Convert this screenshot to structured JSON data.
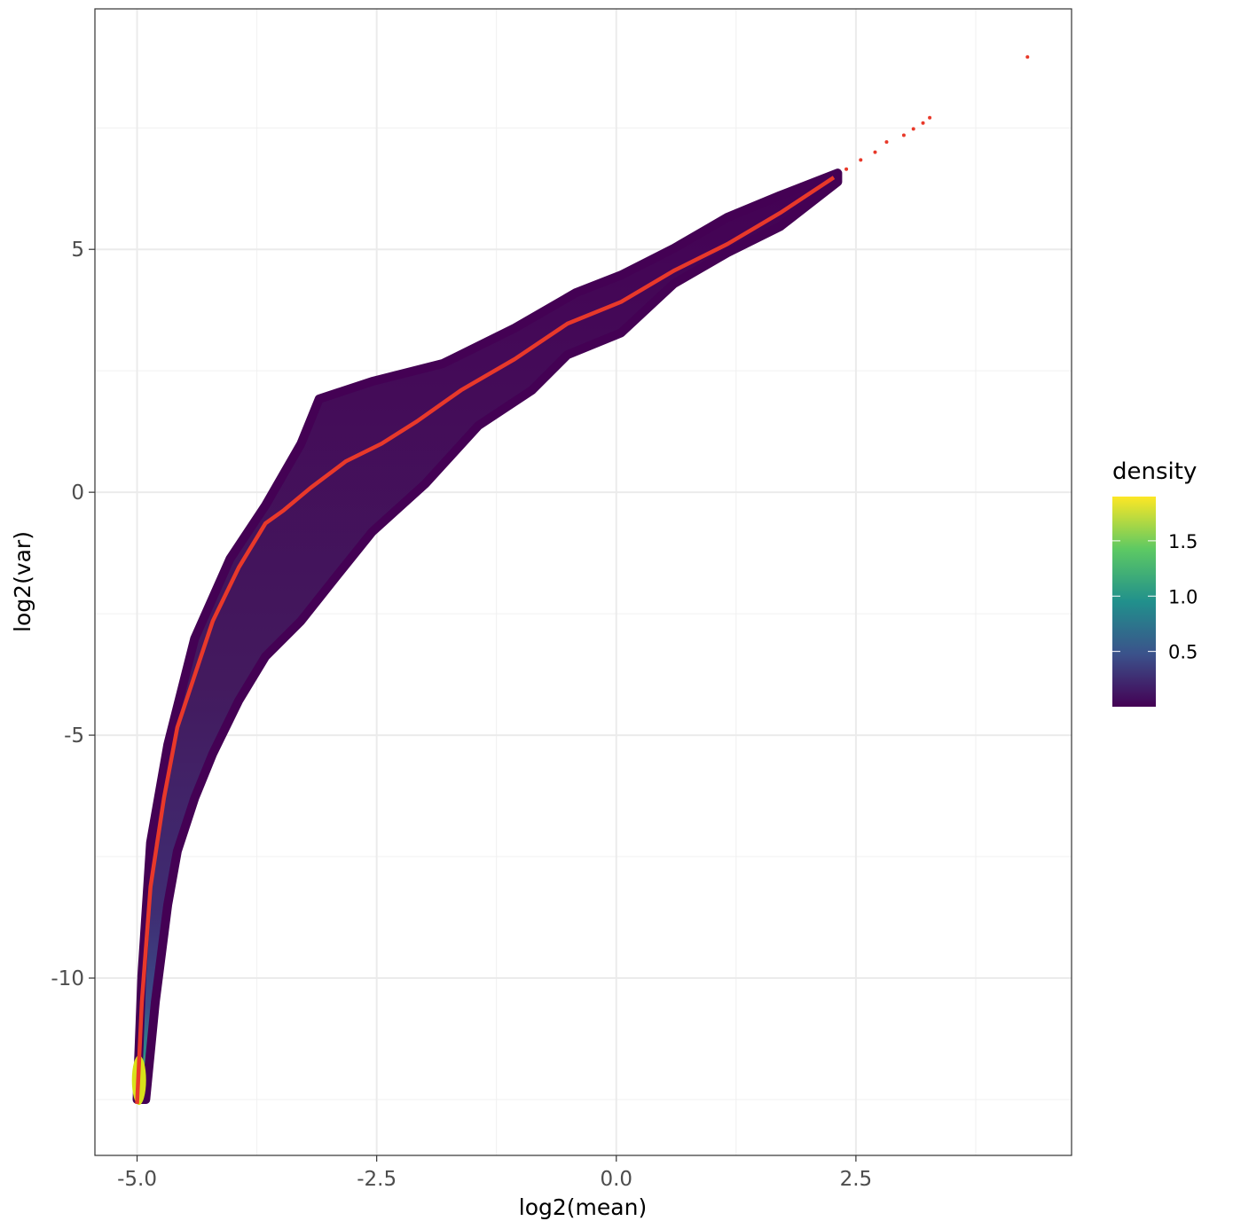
{
  "chart_data": {
    "type": "scatter",
    "title": "",
    "xlabel": "log2(mean)",
    "ylabel": "log2(var)",
    "xlim": [
      -5.44,
      4.75
    ],
    "ylim": [
      -13.65,
      9.95
    ],
    "x_ticks": [
      -5.0,
      -2.5,
      0.0,
      2.5
    ],
    "x_tick_labels": [
      "-5.0",
      "-2.5",
      "0.0",
      "2.5"
    ],
    "y_ticks": [
      5,
      0,
      -5,
      -10
    ],
    "y_tick_labels": [
      "5",
      "0",
      "-5",
      "-10"
    ],
    "grid": true,
    "point_cloud_upper_envelope": [
      [
        -5.0,
        -12.5
      ],
      [
        -4.95,
        -9.95
      ],
      [
        -4.86,
        -7.21
      ],
      [
        -4.68,
        -5.2
      ],
      [
        -4.4,
        -3.01
      ],
      [
        -4.03,
        -1.37
      ],
      [
        -3.66,
        -0.27
      ],
      [
        -3.29,
        1.0
      ],
      [
        -3.1,
        1.92
      ],
      [
        -2.55,
        2.28
      ],
      [
        -1.81,
        2.65
      ],
      [
        -1.06,
        3.38
      ],
      [
        -0.42,
        4.11
      ],
      [
        0.05,
        4.47
      ],
      [
        0.6,
        5.02
      ],
      [
        1.16,
        5.66
      ],
      [
        1.71,
        6.11
      ],
      [
        2.31,
        6.57
      ]
    ],
    "point_cloud_lower_envelope": [
      [
        2.31,
        6.39
      ],
      [
        1.71,
        5.47
      ],
      [
        1.16,
        4.93
      ],
      [
        0.6,
        4.29
      ],
      [
        0.05,
        3.28
      ],
      [
        -0.51,
        2.83
      ],
      [
        -0.88,
        2.1
      ],
      [
        -1.44,
        1.37
      ],
      [
        -1.99,
        0.18
      ],
      [
        -2.55,
        -0.82
      ],
      [
        -2.92,
        -1.73
      ],
      [
        -3.29,
        -2.65
      ],
      [
        -3.66,
        -3.38
      ],
      [
        -3.94,
        -4.29
      ],
      [
        -4.21,
        -5.38
      ],
      [
        -4.4,
        -6.3
      ],
      [
        -4.58,
        -7.39
      ],
      [
        -4.68,
        -8.49
      ],
      [
        -4.81,
        -10.49
      ],
      [
        -4.91,
        -12.5
      ]
    ],
    "trend_line": {
      "color": "#e8392a",
      "points": [
        [
          -5.0,
          -12.59
        ],
        [
          -4.95,
          -10.49
        ],
        [
          -4.86,
          -8.12
        ],
        [
          -4.72,
          -6.3
        ],
        [
          -4.58,
          -4.84
        ],
        [
          -4.21,
          -2.65
        ],
        [
          -3.94,
          -1.55
        ],
        [
          -3.66,
          -0.64
        ],
        [
          -3.47,
          -0.37
        ],
        [
          -3.19,
          0.09
        ],
        [
          -2.82,
          0.64
        ],
        [
          -2.45,
          1.0
        ],
        [
          -2.08,
          1.46
        ],
        [
          -1.62,
          2.1
        ],
        [
          -1.06,
          2.74
        ],
        [
          -0.51,
          3.47
        ],
        [
          0.05,
          3.92
        ],
        [
          0.6,
          4.56
        ],
        [
          1.16,
          5.11
        ],
        [
          1.71,
          5.75
        ],
        [
          2.27,
          6.48
        ]
      ]
    },
    "trend_points_extra": [
      [
        2.4,
        6.65
      ],
      [
        2.55,
        6.84
      ],
      [
        2.7,
        7.0
      ],
      [
        2.82,
        7.21
      ],
      [
        3.0,
        7.35
      ],
      [
        3.1,
        7.48
      ],
      [
        3.2,
        7.6
      ],
      [
        3.27,
        7.71
      ],
      [
        4.29,
        8.96
      ]
    ],
    "legend": {
      "title": "density",
      "placement": "right",
      "range": [
        0.0,
        1.9
      ],
      "ticks": [
        0.5,
        1.0,
        1.5
      ],
      "tick_labels": [
        "0.5",
        "1.0",
        "1.5"
      ],
      "colors": [
        "#440154",
        "#3b528b",
        "#21908c",
        "#5dc963",
        "#fde725"
      ]
    }
  }
}
